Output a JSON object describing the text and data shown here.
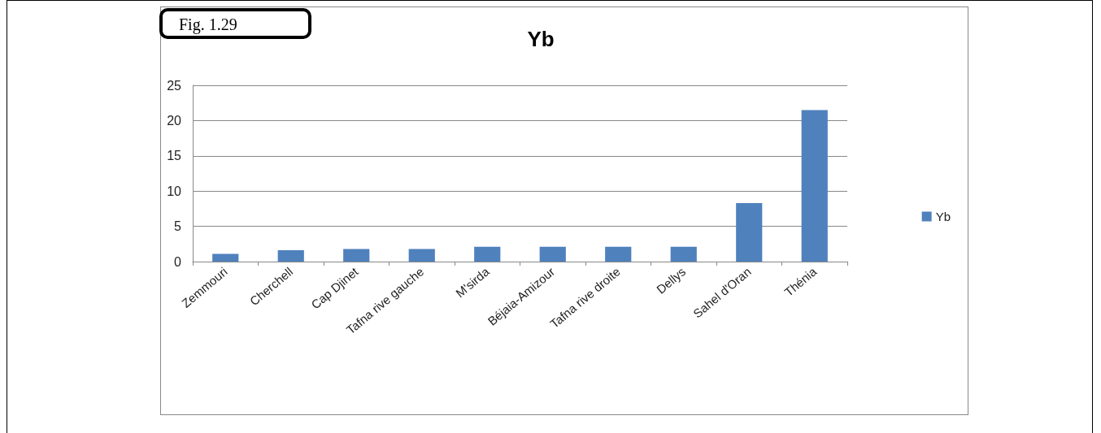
{
  "chart_data": {
    "type": "bar",
    "title": "Yb",
    "categories": [
      "Zemmouri",
      "Cherchell",
      "Cap Djinet",
      "Tafna rive gauche",
      "M'sirda",
      "Béjaia-Amizour",
      "Tafna rive droite",
      "Dellys",
      "Sahel d'Oran",
      "Thénia"
    ],
    "series": [
      {
        "name": "Yb",
        "color": "#4f81bd",
        "values": [
          1.1,
          1.6,
          1.8,
          1.8,
          2.1,
          2.1,
          2.1,
          2.1,
          8.3,
          21.5
        ]
      }
    ],
    "ylim": [
      0,
      25
    ],
    "yticks": [
      0,
      5,
      10,
      15,
      20,
      25
    ],
    "grid": "y",
    "legend": "right",
    "annotations": [
      "Fig. 1.29"
    ]
  }
}
